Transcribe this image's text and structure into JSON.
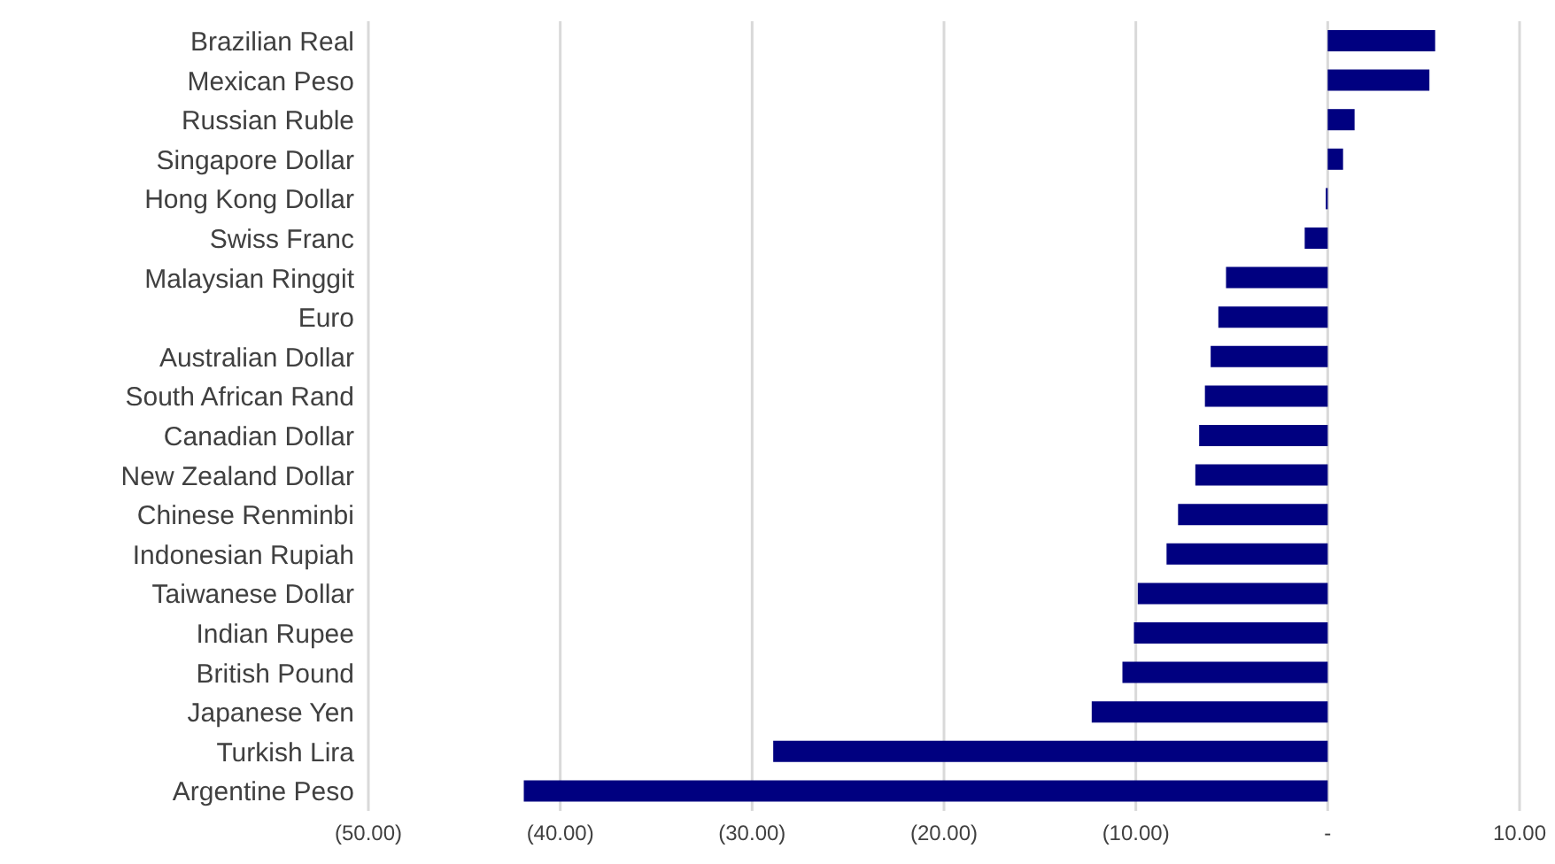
{
  "chart_data": {
    "type": "bar",
    "orientation": "horizontal",
    "categories": [
      "Brazilian Real",
      "Mexican Peso",
      "Russian Ruble",
      "Singapore Dollar",
      "Hong Kong Dollar",
      "Swiss Franc",
      "Malaysian Ringgit",
      "Euro",
      "Australian Dollar",
      "South African Rand",
      "Canadian Dollar",
      "New Zealand Dollar",
      "Chinese Renminbi",
      "Indonesian Rupiah",
      "Taiwanese Dollar",
      "Indian Rupee",
      "British Pound",
      "Japanese Yen",
      "Turkish Lira",
      "Argentine Peso"
    ],
    "values": [
      5.6,
      5.3,
      1.4,
      0.8,
      -0.1,
      -1.2,
      -5.3,
      -5.7,
      -6.1,
      -6.4,
      -6.7,
      -6.9,
      -7.8,
      -8.4,
      -9.9,
      -10.1,
      -10.7,
      -12.3,
      -28.9,
      -41.9
    ],
    "color": "#000080",
    "xlim": [
      -50,
      10
    ],
    "xticks": [
      {
        "value": -50,
        "label": "(50.00)"
      },
      {
        "value": -40,
        "label": "(40.00)"
      },
      {
        "value": -30,
        "label": "(30.00)"
      },
      {
        "value": -20,
        "label": "(20.00)"
      },
      {
        "value": -10,
        "label": "(10.00)"
      },
      {
        "value": 0,
        "label": "-"
      },
      {
        "value": 10,
        "label": "10.00"
      }
    ],
    "grid": "x"
  }
}
